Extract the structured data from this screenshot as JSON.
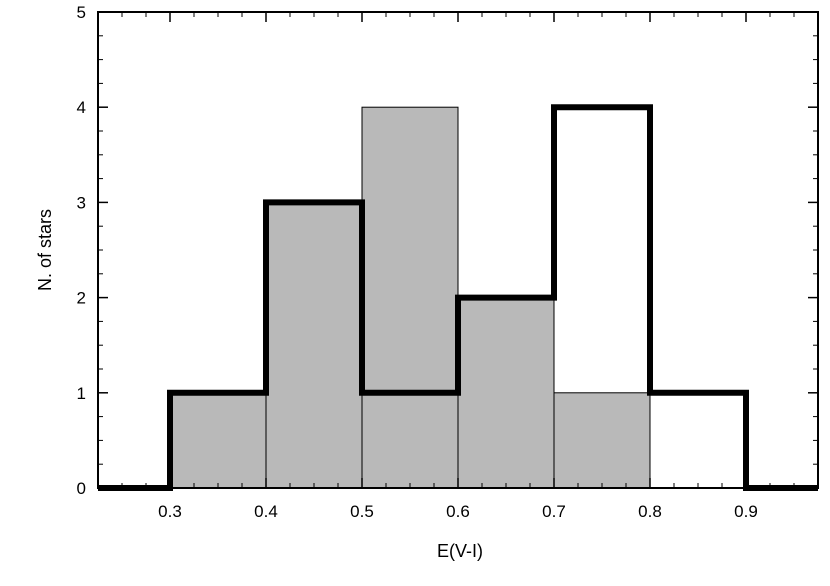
{
  "chart_data": {
    "type": "bar",
    "title": "",
    "xlabel": "E(V-I)",
    "ylabel": "N. of stars",
    "xlim": [
      0.225,
      0.975
    ],
    "ylim": [
      0,
      5
    ],
    "grid": false,
    "legend": "none",
    "x_ticks": [
      "0.3",
      "0.4",
      "0.5",
      "0.6",
      "0.7",
      "0.8",
      "0.9"
    ],
    "x_tick_values": [
      0.3,
      0.4,
      0.5,
      0.6,
      0.7,
      0.8,
      0.9
    ],
    "y_ticks": [
      "0",
      "1",
      "2",
      "3",
      "4",
      "5"
    ],
    "y_tick_values": [
      0,
      1,
      2,
      3,
      4,
      5
    ],
    "series": [
      {
        "style": "filled-gray-bars",
        "color": "#b9b9b9",
        "bins": [
          {
            "x0": 0.3,
            "x1": 0.4,
            "value": 1
          },
          {
            "x0": 0.4,
            "x1": 0.5,
            "value": 3
          },
          {
            "x0": 0.5,
            "x1": 0.6,
            "value": 4
          },
          {
            "x0": 0.6,
            "x1": 0.7,
            "value": 2
          },
          {
            "x0": 0.7,
            "x1": 0.8,
            "value": 1
          }
        ]
      },
      {
        "style": "thick-black-step-outline",
        "color": "#000000",
        "bins": [
          {
            "x0": 0.3,
            "x1": 0.4,
            "value": 1
          },
          {
            "x0": 0.4,
            "x1": 0.5,
            "value": 3
          },
          {
            "x0": 0.5,
            "x1": 0.6,
            "value": 1
          },
          {
            "x0": 0.6,
            "x1": 0.7,
            "value": 2
          },
          {
            "x0": 0.7,
            "x1": 0.8,
            "value": 4
          },
          {
            "x0": 0.8,
            "x1": 0.9,
            "value": 1
          }
        ]
      }
    ]
  }
}
